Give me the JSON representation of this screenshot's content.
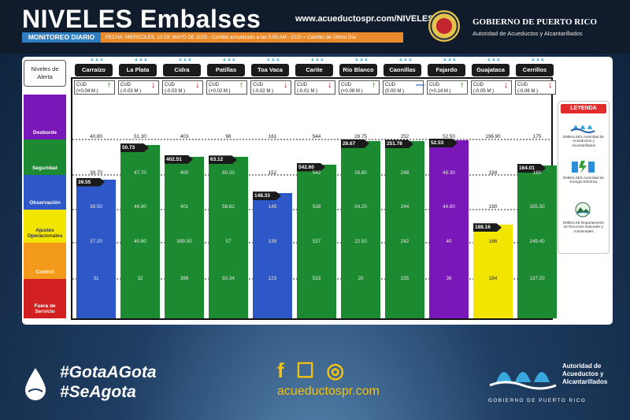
{
  "header": {
    "title": "NIVELES Embalses",
    "website": "www.acueductospr.com/NIVELES",
    "subtitle_tag": "MONITOREO DIARIO",
    "subtitle_text": "FECHA: MIÉRCOLES, 13 DE MAYO DE 2020 - Cambio actualizado a las 5:00 AM - CUD = Cambio de Último Día",
    "gov_title": "GOBIERNO DE PUERTO RICO",
    "gov_subtitle": "Autoridad de Acueductos y Alcantarillados"
  },
  "alert_levels": {
    "title": "Niveles de Alerta",
    "bands": [
      {
        "name": "Desborde",
        "color": "#7a17b8"
      },
      {
        "name": "Seguridad",
        "color": "#1c8a30"
      },
      {
        "name": "Observación",
        "color": "#2e58c7"
      },
      {
        "name": "Ajustes Operacionales",
        "color": "#f2e600"
      },
      {
        "name": "Control",
        "color": "#f39a1c"
      },
      {
        "name": "Fuera de Servicio",
        "color": "#d21f1f"
      }
    ]
  },
  "legend": {
    "title": "LEYENDA",
    "entries": [
      {
        "icon": "aaa-waves-icon",
        "text": "EMBALSES Autoridad de Acueductos y Alcantarillados"
      },
      {
        "icon": "aee-lightning-icon",
        "text": "EMBALSES Autoridad de Energía Eléctrica"
      },
      {
        "icon": "drna-landscape-icon",
        "text": "EMBALSE Departamento de Recursos Naturales y Ambientales"
      }
    ]
  },
  "chart_data": {
    "type": "bar",
    "title": "NIVELES Embalses",
    "reservoirs": [
      {
        "name": "Carraízo",
        "cud": "(+0.04 M )",
        "trend": "up",
        "level": 39.55,
        "color": "#2e58c7",
        "thresholds": {
          "desborde": 40.8,
          "seguridad": 39.7,
          "observacion": 38.5,
          "ajustes": 37.2,
          "control": 31.0
        }
      },
      {
        "name": "La Plata",
        "cud": "(-0.03 M )",
        "trend": "down",
        "level": 50.73,
        "color": "#1c8a30",
        "thresholds": {
          "desborde": 51.3,
          "seguridad": 47.7,
          "observacion": 44.9,
          "ajustes": 40.8,
          "control": 32
        }
      },
      {
        "name": "Cidra",
        "cud": "(-0.03 M )",
        "trend": "down",
        "level": 402.51,
        "color": "#1c8a30",
        "thresholds": {
          "desborde": 403,
          "seguridad": 400,
          "observacion": 401,
          "ajustes": 399.5,
          "control": 398
        }
      },
      {
        "name": "Patillas",
        "cud": "(+0.02 M )",
        "trend": "up",
        "level": 63.12,
        "color": "#1c8a30",
        "thresholds": {
          "desborde": 66.0,
          "seguridad": 60.2,
          "observacion": 58.82,
          "ajustes": 57,
          "control": 50.34
        }
      },
      {
        "name": "Toa Vaca",
        "cud": "(-0.02 M )",
        "trend": "down",
        "level": 148.33,
        "color": "#2e58c7",
        "thresholds": {
          "desborde": 161,
          "seguridad": 152,
          "observacion": 145,
          "ajustes": 139,
          "control": 123
        }
      },
      {
        "name": "Carite",
        "cud": "(-0.01 M )",
        "trend": "down",
        "level": 542.6,
        "color": "#1c8a30",
        "thresholds": {
          "desborde": 544,
          "seguridad": 542,
          "observacion": 539,
          "ajustes": 537,
          "control": 533
        }
      },
      {
        "name": "Río Blanco",
        "cud": "(+0.08 M )",
        "trend": "up",
        "level": 28.67,
        "color": "#1c8a30",
        "thresholds": {
          "desborde": 28.75,
          "seguridad": 26.8,
          "observacion": 24.25,
          "ajustes": 22.5,
          "control": 20
        }
      },
      {
        "name": "Caonillas",
        "cud": "(0.00 M )",
        "trend": "flat",
        "level": 251.78,
        "color": "#1c8a30",
        "thresholds": {
          "desborde": 252,
          "seguridad": 248,
          "observacion": 244,
          "ajustes": 242,
          "control": 235
        }
      },
      {
        "name": "Fajardo",
        "cud": "(+0.14 M )",
        "trend": "up",
        "level": 52.53,
        "color": "#7a17b8",
        "thresholds": {
          "desborde": 52.5,
          "seguridad": 48.3,
          "observacion": 44.8,
          "ajustes": 40.0,
          "control": 36
        }
      },
      {
        "name": "Guajataca",
        "cud": "(-0.05 M )",
        "trend": "down",
        "level": 188.16,
        "color": "#f2e600",
        "thresholds": {
          "desborde": 196.9,
          "seguridad": 194,
          "observacion": 190,
          "ajustes": 186,
          "control": 184
        }
      },
      {
        "name": "Cerrillos",
        "cud": "(-0.06 M )",
        "trend": "down",
        "level": 164.01,
        "color": "#1c8a30",
        "thresholds": {
          "desborde": 175,
          "seguridad": 160.0,
          "observacion": 155.5,
          "ajustes": 149.4,
          "control": 137.2
        }
      }
    ]
  },
  "footer": {
    "hashtag1": "#GotaAGota",
    "hashtag2": "#SeAgota",
    "social_icons": "f ☐ ◎",
    "website": "acueductospr.com",
    "org_name": "Autoridad de Acueductos y Alcantarillados",
    "gov_line": "GOBIERNO DE PUERTO RICO"
  }
}
